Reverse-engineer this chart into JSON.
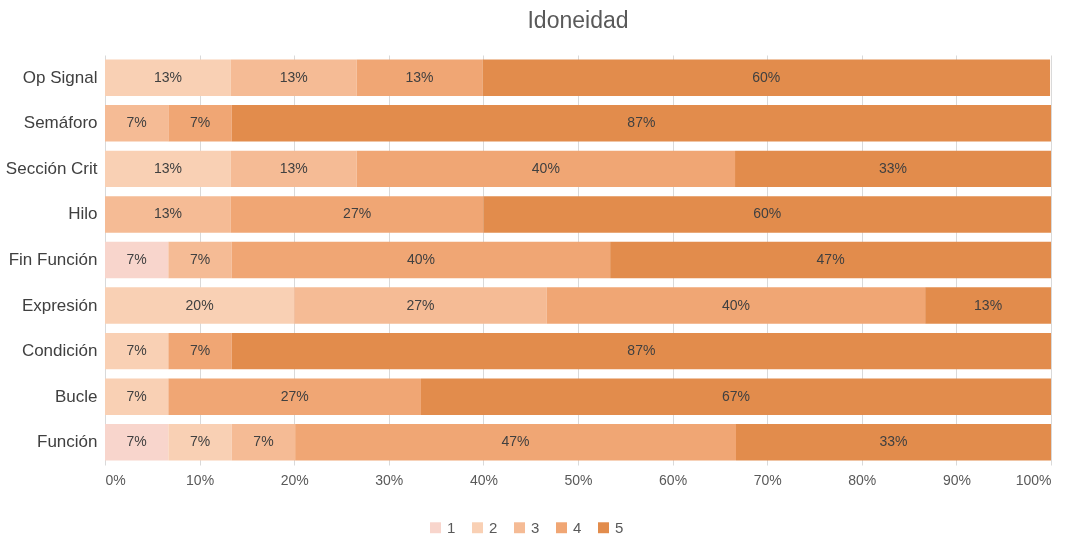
{
  "chart_data": {
    "type": "bar",
    "orientation": "horizontal",
    "stacked": true,
    "title": "Idoneidad",
    "categories": [
      "Op Signal",
      "Semáforo",
      "Sección Crit",
      "Hilo",
      "Fin Función",
      "Expresión",
      "Condición",
      "Bucle",
      "Función"
    ],
    "series": [
      {
        "name": "1",
        "color": "#f8d5cc",
        "values": [
          null,
          null,
          null,
          null,
          6.7,
          null,
          null,
          null,
          6.7
        ],
        "value_labels": [
          null,
          null,
          null,
          null,
          "7%",
          null,
          null,
          null,
          "7%"
        ]
      },
      {
        "name": "2",
        "color": "#f9d0b4",
        "values": [
          13.3,
          null,
          13.3,
          null,
          null,
          20,
          6.7,
          6.7,
          6.7
        ],
        "value_labels": [
          "13%",
          null,
          "13%",
          null,
          null,
          "20%",
          "7%",
          "7%",
          "7%"
        ]
      },
      {
        "name": "3",
        "color": "#f5bb95",
        "values": [
          13.3,
          6.7,
          13.3,
          13.3,
          6.7,
          26.7,
          null,
          null,
          6.7
        ],
        "value_labels": [
          "13%",
          "7%",
          "13%",
          "13%",
          "7%",
          "27%",
          null,
          null,
          "7%"
        ]
      },
      {
        "name": "4",
        "color": "#f0a674",
        "values": [
          13.3,
          6.7,
          40,
          26.7,
          40,
          40,
          6.7,
          26.7,
          46.6
        ],
        "value_labels": [
          "13%",
          "7%",
          "40%",
          "27%",
          "40%",
          "40%",
          "7%",
          "27%",
          "47%"
        ]
      },
      {
        "name": "5",
        "color": "#e28c4c",
        "values": [
          60,
          86.6,
          33.4,
          60,
          46.6,
          13.3,
          86.6,
          66.6,
          33.3
        ],
        "value_labels": [
          "60%",
          "87%",
          "33%",
          "60%",
          "47%",
          "13%",
          "87%",
          "67%",
          "33%"
        ]
      }
    ],
    "xlim": [
      0,
      100
    ],
    "xticks": [
      {
        "value": 0,
        "label": "0%"
      },
      {
        "value": 10,
        "label": "10%"
      },
      {
        "value": 20,
        "label": "20%"
      },
      {
        "value": 30,
        "label": "30%"
      },
      {
        "value": 40,
        "label": "40%"
      },
      {
        "value": 50,
        "label": "50%"
      },
      {
        "value": 60,
        "label": "60%"
      },
      {
        "value": 70,
        "label": "70%"
      },
      {
        "value": 80,
        "label": "80%"
      },
      {
        "value": 90,
        "label": "90%"
      },
      {
        "value": 100,
        "label": "100%"
      }
    ],
    "grid": "x",
    "legend": "bottom"
  }
}
